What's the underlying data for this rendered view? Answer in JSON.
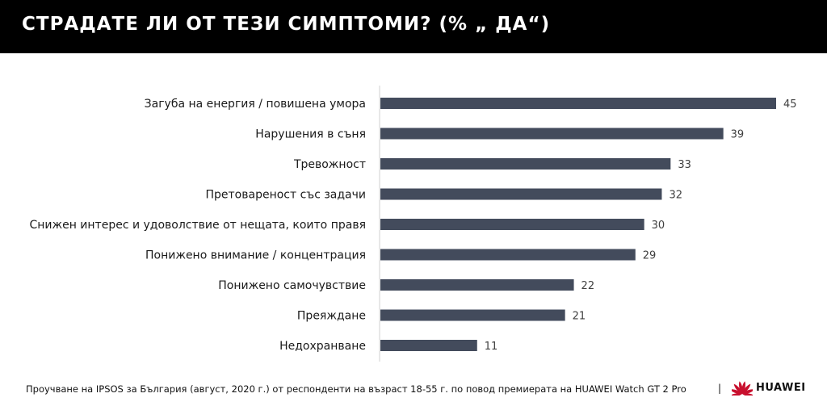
{
  "header": {
    "title": "СТРАДАТЕ ЛИ ОТ ТЕЗИ СИМПТОМИ? (% „ ДА“)"
  },
  "chart_data": {
    "type": "bar",
    "orientation": "horizontal",
    "categories": [
      "Загуба на енергия / повишена умора",
      "Нарушения в съня",
      "Тревожност",
      "Претовареност със задачи",
      "Снижен интерес и удоволствие от нещата, които правя",
      "Понижено внимание / концентрация",
      "Понижено самочувствие",
      "Преяждане",
      "Недохранване"
    ],
    "values": [
      45,
      39,
      33,
      32,
      30,
      29,
      22,
      21,
      11
    ],
    "xlim": [
      0,
      45
    ],
    "bar_color": "#434b5c",
    "axis_color": "#d0d0d0",
    "grid": false,
    "legend": "none"
  },
  "footer": {
    "note": "Проучване на IPSOS за България (август, 2020 г.) от респонденти на възраст 18-55 г. по повод премиерата на HUAWEI Watch GT 2 Pro",
    "separator": "|",
    "brand": "HUAWEI",
    "logo_icon": "huawei-petal-logo",
    "logo_color": "#c8102e"
  }
}
